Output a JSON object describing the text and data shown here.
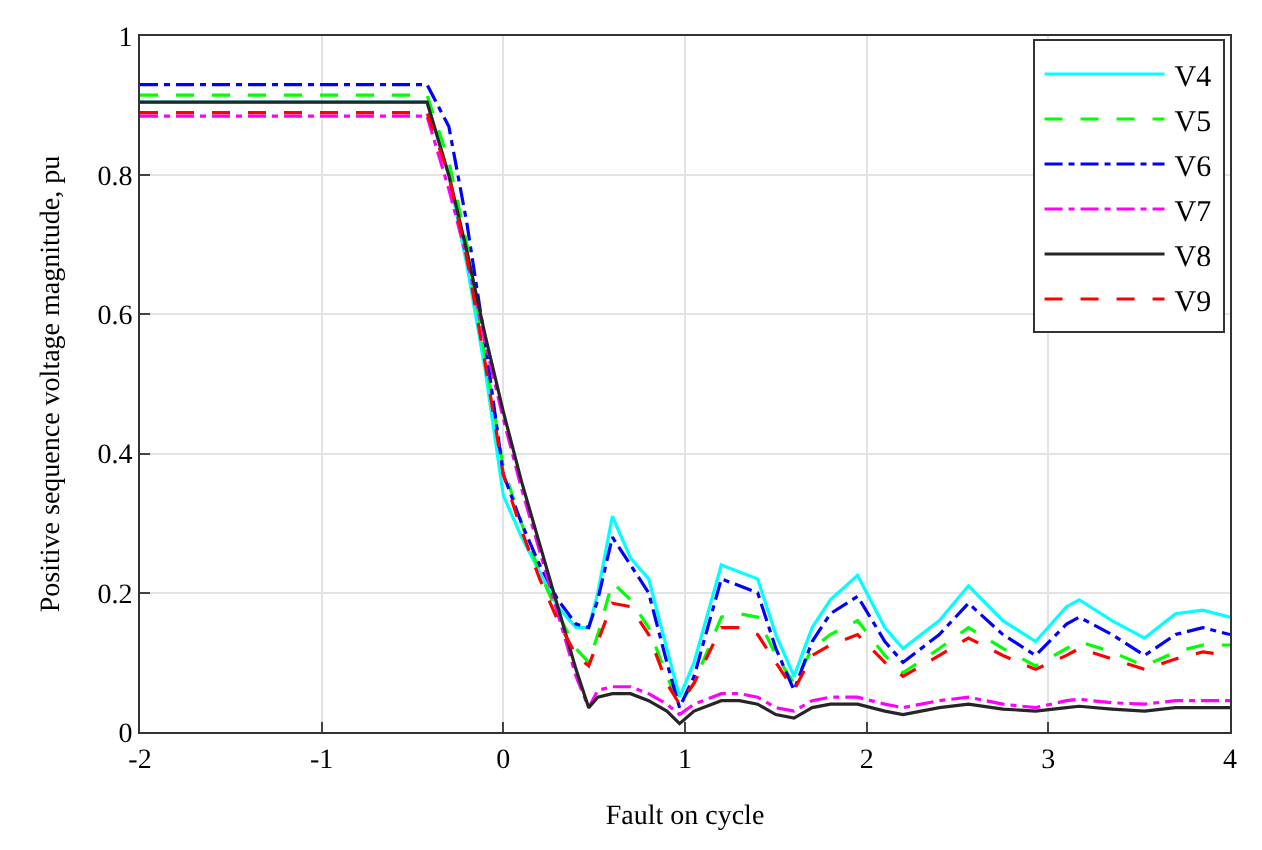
{
  "chart_data": {
    "type": "line",
    "xlabel": "Fault on cycle",
    "ylabel": "Positive sequence voltage magnitude, pu",
    "x": [
      -2,
      -0.42,
      -0.3,
      -0.2,
      -0.1,
      0,
      0.1,
      0.2,
      0.3,
      0.4,
      0.47,
      0.52,
      0.6,
      0.7,
      0.8,
      0.9,
      0.97,
      1.05,
      1.2,
      1.3,
      1.4,
      1.5,
      1.6,
      1.7,
      1.8,
      1.95,
      2.1,
      2.2,
      2.4,
      2.56,
      2.75,
      2.93,
      3.1,
      3.17,
      3.35,
      3.53,
      3.7,
      3.85,
      4.0
    ],
    "xlim": [
      -2,
      4
    ],
    "xticks": [
      -2,
      -1,
      0,
      1,
      2,
      3,
      4
    ],
    "ylim": [
      0,
      1
    ],
    "yticks": [
      0,
      0.2,
      0.4,
      0.6,
      0.8,
      1
    ],
    "grid": true,
    "legend": "top right",
    "series": [
      {
        "name": "V4",
        "color": "#00ffff",
        "line_style": "solid",
        "values": [
          0.905,
          0.905,
          0.8,
          0.67,
          0.52,
          0.34,
          0.28,
          0.23,
          0.18,
          0.15,
          0.15,
          0.2,
          0.31,
          0.25,
          0.22,
          0.12,
          0.05,
          0.1,
          0.24,
          0.23,
          0.22,
          0.14,
          0.08,
          0.15,
          0.19,
          0.225,
          0.15,
          0.12,
          0.16,
          0.21,
          0.16,
          0.13,
          0.18,
          0.19,
          0.16,
          0.135,
          0.17,
          0.175,
          0.165
        ]
      },
      {
        "name": "V5",
        "color": "#00ff00",
        "line_style": "dashed",
        "values": [
          0.915,
          0.915,
          0.82,
          0.7,
          0.54,
          0.38,
          0.3,
          0.23,
          0.17,
          0.12,
          0.1,
          0.14,
          0.215,
          0.19,
          0.15,
          0.08,
          0.04,
          0.07,
          0.165,
          0.17,
          0.165,
          0.11,
          0.07,
          0.12,
          0.14,
          0.16,
          0.11,
          0.085,
          0.12,
          0.15,
          0.12,
          0.095,
          0.12,
          0.13,
          0.115,
          0.095,
          0.115,
          0.125,
          0.125
        ]
      },
      {
        "name": "V6",
        "color": "#0000ff",
        "line_style": "dashdot",
        "values": [
          0.93,
          0.93,
          0.87,
          0.73,
          0.56,
          0.37,
          0.3,
          0.24,
          0.19,
          0.155,
          0.15,
          0.19,
          0.28,
          0.24,
          0.2,
          0.1,
          0.035,
          0.08,
          0.22,
          0.21,
          0.2,
          0.12,
          0.06,
          0.13,
          0.17,
          0.195,
          0.13,
          0.1,
          0.14,
          0.185,
          0.14,
          0.11,
          0.155,
          0.165,
          0.14,
          0.11,
          0.14,
          0.15,
          0.14
        ]
      },
      {
        "name": "V7",
        "color": "#ff00ff",
        "line_style": "dashdot",
        "values": [
          0.885,
          0.885,
          0.78,
          0.68,
          0.56,
          0.45,
          0.35,
          0.26,
          0.17,
          0.08,
          0.035,
          0.06,
          0.065,
          0.065,
          0.055,
          0.04,
          0.025,
          0.04,
          0.055,
          0.055,
          0.05,
          0.035,
          0.03,
          0.045,
          0.05,
          0.05,
          0.04,
          0.035,
          0.045,
          0.05,
          0.04,
          0.035,
          0.045,
          0.047,
          0.042,
          0.04,
          0.045,
          0.045,
          0.045
        ]
      },
      {
        "name": "V8",
        "color": "#262626",
        "line_style": "solid",
        "values": [
          0.905,
          0.905,
          0.8,
          0.69,
          0.57,
          0.46,
          0.36,
          0.27,
          0.18,
          0.09,
          0.035,
          0.05,
          0.055,
          0.055,
          0.045,
          0.03,
          0.012,
          0.03,
          0.045,
          0.045,
          0.04,
          0.025,
          0.02,
          0.035,
          0.04,
          0.04,
          0.03,
          0.025,
          0.035,
          0.04,
          0.033,
          0.03,
          0.035,
          0.037,
          0.033,
          0.03,
          0.035,
          0.035,
          0.035
        ]
      },
      {
        "name": "V9",
        "color": "#ff0000",
        "line_style": "dashed",
        "values": [
          0.89,
          0.89,
          0.8,
          0.68,
          0.53,
          0.37,
          0.29,
          0.22,
          0.16,
          0.11,
          0.095,
          0.13,
          0.185,
          0.18,
          0.14,
          0.07,
          0.04,
          0.07,
          0.15,
          0.15,
          0.14,
          0.1,
          0.06,
          0.11,
          0.125,
          0.14,
          0.1,
          0.08,
          0.11,
          0.135,
          0.11,
          0.09,
          0.11,
          0.12,
          0.105,
          0.09,
          0.105,
          0.115,
          0.11
        ]
      }
    ]
  }
}
